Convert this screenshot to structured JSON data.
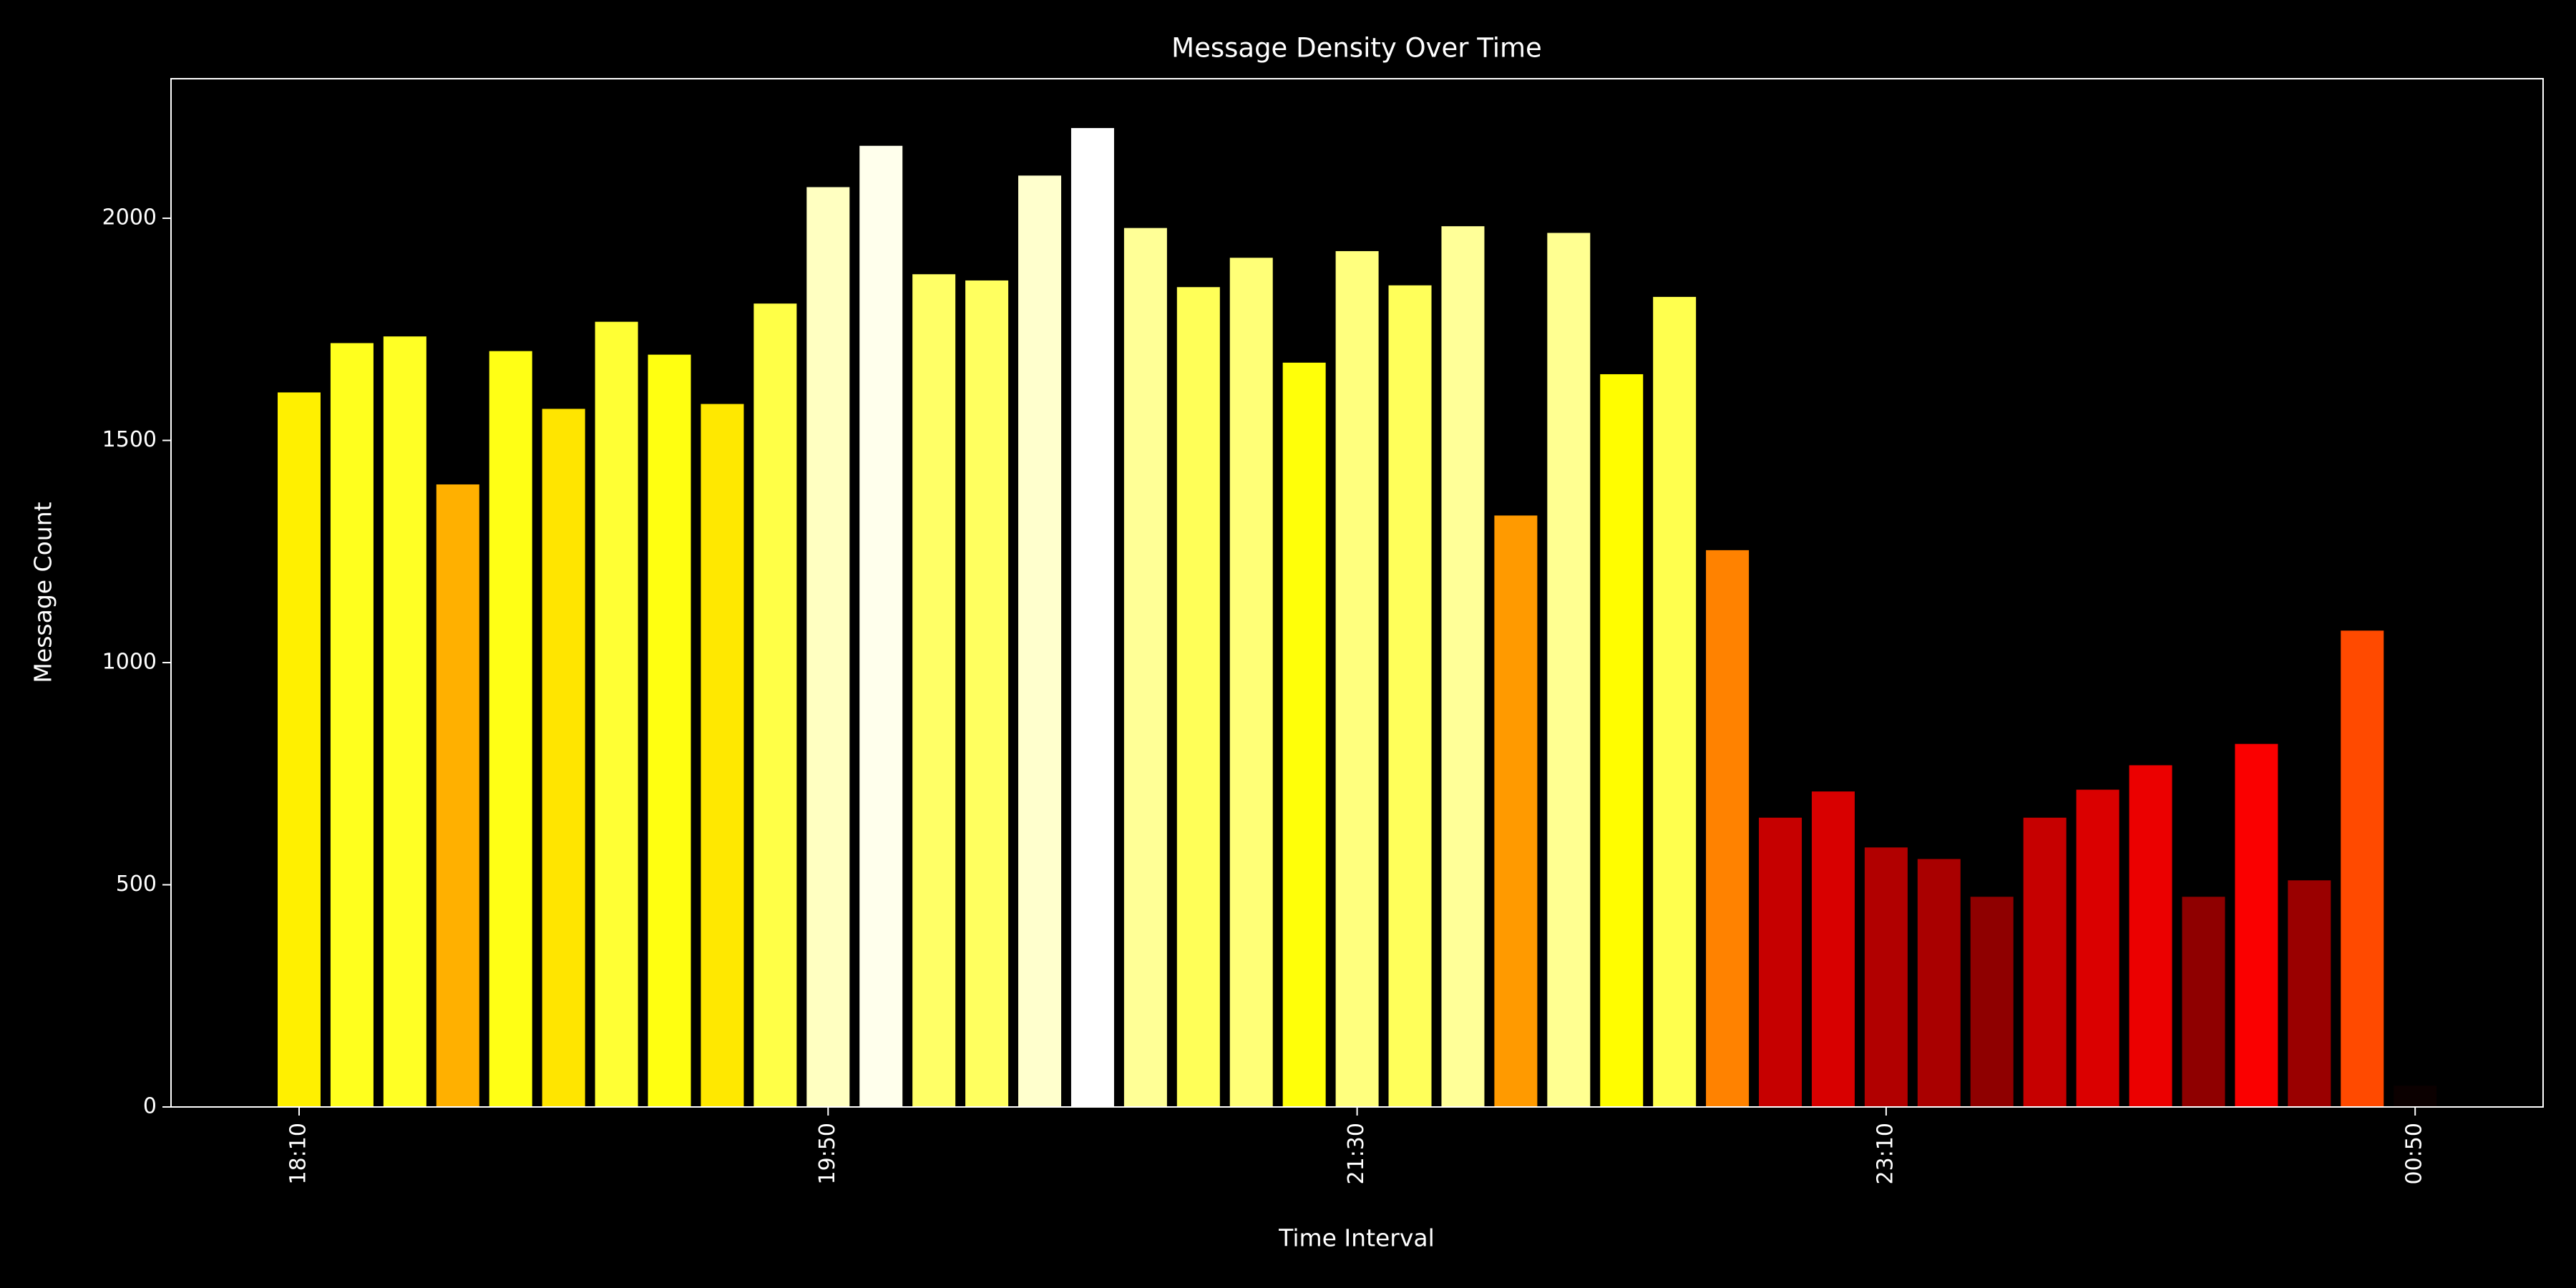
{
  "chart_data": {
    "type": "bar",
    "title": "Message Density Over Time",
    "xlabel": "Time Interval",
    "ylabel": "Message Count",
    "categories": [
      "18:10",
      null,
      null,
      null,
      null,
      null,
      null,
      null,
      null,
      null,
      "19:50",
      null,
      null,
      null,
      null,
      null,
      null,
      null,
      null,
      null,
      "21:30",
      null,
      null,
      null,
      null,
      null,
      null,
      null,
      null,
      null,
      "23:10",
      null,
      null,
      null,
      null,
      null,
      null,
      null,
      null,
      null,
      "00:50"
    ],
    "values": [
      1608,
      1719,
      1734,
      1401,
      1701,
      1571,
      1767,
      1693,
      1582,
      1808,
      2070,
      2163,
      1874,
      1860,
      2096,
      2203,
      1978,
      1845,
      1911,
      1675,
      1926,
      1849,
      1982,
      1331,
      1967,
      1649,
      1823,
      1253,
      651,
      710,
      584,
      558,
      473,
      651,
      714,
      769,
      473,
      817,
      510,
      1072,
      48
    ],
    "colormap": "hot",
    "ylim": [
      0,
      2314
    ],
    "yticks": [
      0,
      500,
      1000,
      1500,
      2000
    ]
  }
}
